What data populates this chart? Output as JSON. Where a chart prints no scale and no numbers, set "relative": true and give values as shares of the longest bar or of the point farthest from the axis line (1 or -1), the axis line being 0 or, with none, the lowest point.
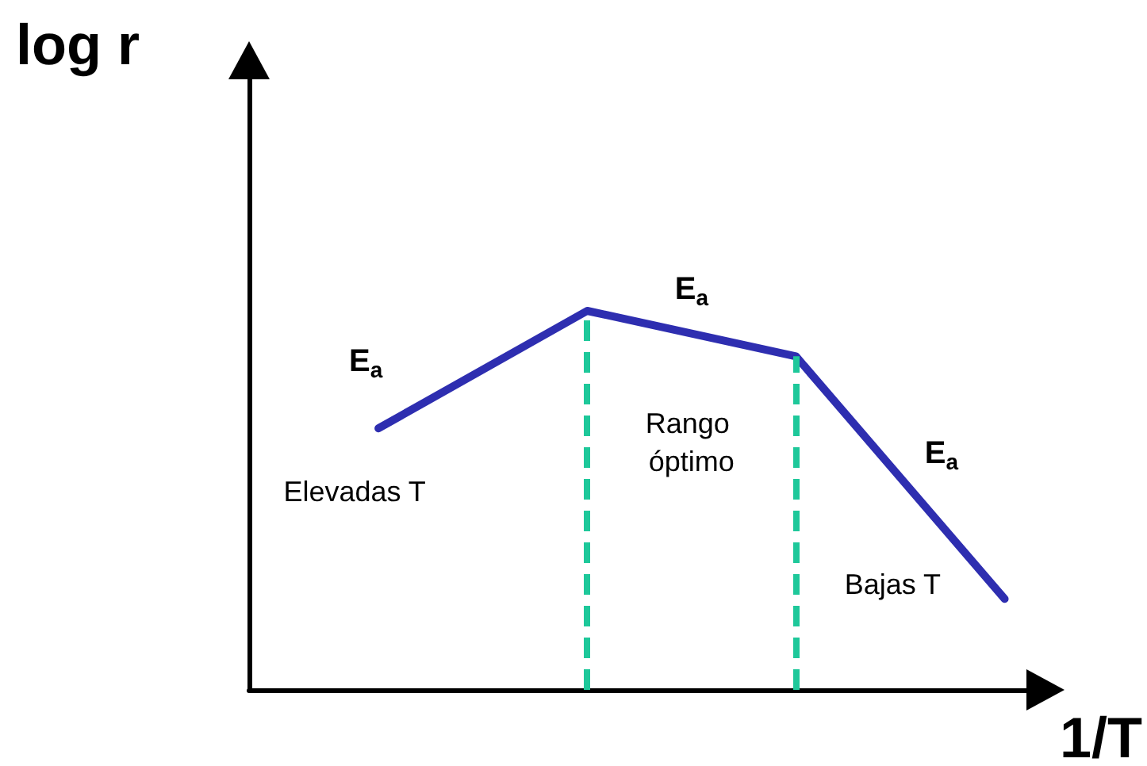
{
  "chart_data": {
    "type": "line",
    "xlabel": "1/T",
    "ylabel": "log r",
    "categories": [
      null,
      null,
      null,
      null
    ],
    "values": [
      0.69,
      1,
      0.88,
      0.24
    ],
    "color": "#2e2eb0",
    "relative": true,
    "line_style": "solid",
    "annotations": [
      "E$_{a}$",
      "E$_{a}$",
      "E$_{a}$",
      "Elevadas T",
      "Rango óptimo",
      "Bajas T"
    ]
  }
}
